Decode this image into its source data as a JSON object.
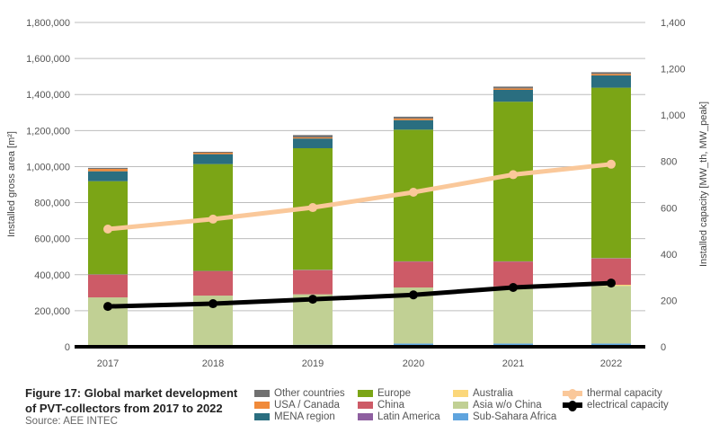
{
  "chart_data": {
    "type": "bar",
    "subtype": "stacked bar with lines on secondary axis",
    "title": "Figure 17: Global market development of PVT-collectors from 2017 to 2022",
    "source": "Source: AEE INTEC",
    "categories": [
      "2017",
      "2018",
      "2019",
      "2020",
      "2021",
      "2022"
    ],
    "ylabel": "Installed gross area [m²]",
    "ylabel2": "Installed capacity [MW_th, MW_peak]",
    "ylim": [
      0,
      1800000
    ],
    "ylim2": [
      0,
      1400
    ],
    "yticks": [
      "0",
      "200,000",
      "400,000",
      "600,000",
      "800,000",
      "1,000,000",
      "1,200,000",
      "1,400,000",
      "1,600,000",
      "1,800,000"
    ],
    "yticks2": [
      "0",
      "200",
      "400",
      "600",
      "800",
      "1,000",
      "1,200",
      "1,400"
    ],
    "grid": true,
    "legend_position": "bottom",
    "series": [
      {
        "name": "Sub-Sahara Africa",
        "color": "#5fa4de",
        "values": [
          0,
          0,
          11000,
          18000,
          18000,
          18000
        ]
      },
      {
        "name": "Asia w/o China",
        "color": "#c1d094",
        "values": [
          274000,
          284000,
          280000,
          311000,
          317000,
          320000
        ]
      },
      {
        "name": "Australia",
        "color": "#fbd77a",
        "values": [
          0,
          0,
          0,
          0,
          0,
          6000
        ]
      },
      {
        "name": "China",
        "color": "#cd5b67",
        "values": [
          126000,
          135000,
          134000,
          143000,
          137000,
          146000
        ]
      },
      {
        "name": "Latin America",
        "color": "#8e5fa0",
        "values": [
          2000,
          2000,
          2000,
          2000,
          2000,
          2000
        ]
      },
      {
        "name": "Europe",
        "color": "#7ba516",
        "values": [
          517000,
          593000,
          675000,
          731000,
          886000,
          946000
        ]
      },
      {
        "name": "MENA region",
        "color": "#2a6e80",
        "values": [
          55000,
          55000,
          54000,
          53000,
          66000,
          68000
        ]
      },
      {
        "name": "USA / Canada",
        "color": "#f08a3a",
        "values": [
          13000,
          8000,
          6000,
          9000,
          8000,
          8000
        ]
      },
      {
        "name": "Other countries",
        "color": "#707070",
        "values": [
          6000,
          5000,
          13000,
          10000,
          10000,
          10000
        ]
      }
    ],
    "lines": [
      {
        "name": "thermal capacity",
        "color": "#fac89a",
        "axis": "right",
        "values": [
          508,
          551,
          601,
          667,
          743,
          788
        ]
      },
      {
        "name": "electrical capacity",
        "color": "#000000",
        "axis": "right",
        "values": [
          174,
          186,
          205,
          224,
          256,
          275
        ]
      }
    ],
    "legend_order": [
      "Other countries",
      "USA / Canada",
      "MENA region",
      "Europe",
      "China",
      "Latin America",
      "Australia",
      "Asia w/o China",
      "Sub-Sahara Africa",
      "thermal capacity",
      "electrical capacity"
    ]
  }
}
